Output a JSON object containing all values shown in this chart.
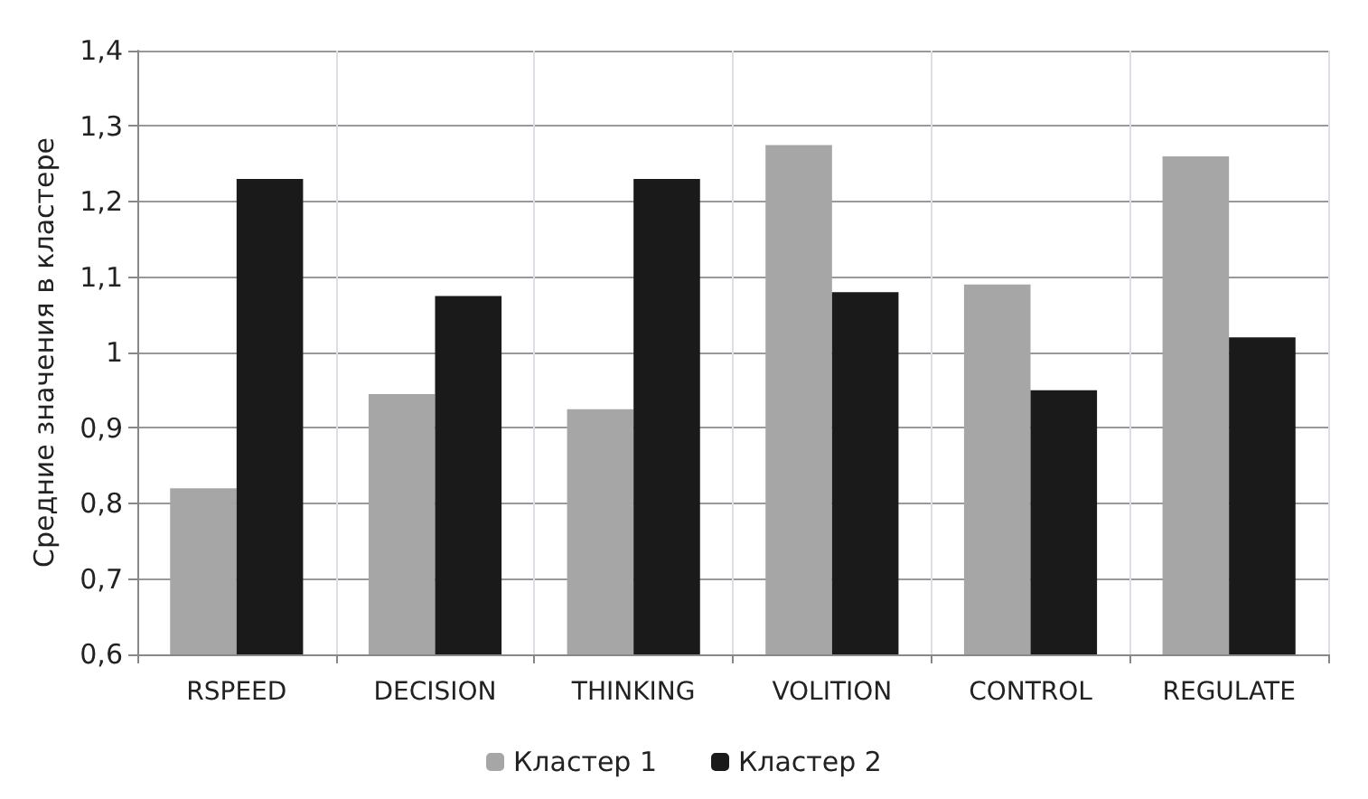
{
  "chart_data": {
    "type": "bar",
    "ylabel": "Средние значения в кластере",
    "categories": [
      "RSPEED",
      "DECISION",
      "THINKING",
      "VOLITION",
      "CONTROL",
      "REGULATE"
    ],
    "series": [
      {
        "name": "Кластер 1",
        "color": "#a6a6a6",
        "values": [
          0.82,
          0.945,
          0.925,
          1.275,
          1.09,
          1.26
        ]
      },
      {
        "name": "Кластер 2",
        "color": "#1a1a1a",
        "values": [
          1.23,
          1.075,
          1.23,
          1.08,
          0.95,
          1.02
        ]
      }
    ],
    "ylim": [
      0.6,
      1.4
    ],
    "yticks": [
      {
        "value": 0.6,
        "label": "0,6"
      },
      {
        "value": 0.7,
        "label": "0,7"
      },
      {
        "value": 0.8,
        "label": "0,8"
      },
      {
        "value": 0.9,
        "label": "0,9"
      },
      {
        "value": 1,
        "label": "1"
      },
      {
        "value": 1.1,
        "label": "1,1"
      },
      {
        "value": 1.2,
        "label": "1,2"
      },
      {
        "value": 1.3,
        "label": "1,3"
      },
      {
        "value": 1.4,
        "label": "1,4"
      }
    ],
    "grid": true,
    "legend": "bottom"
  }
}
